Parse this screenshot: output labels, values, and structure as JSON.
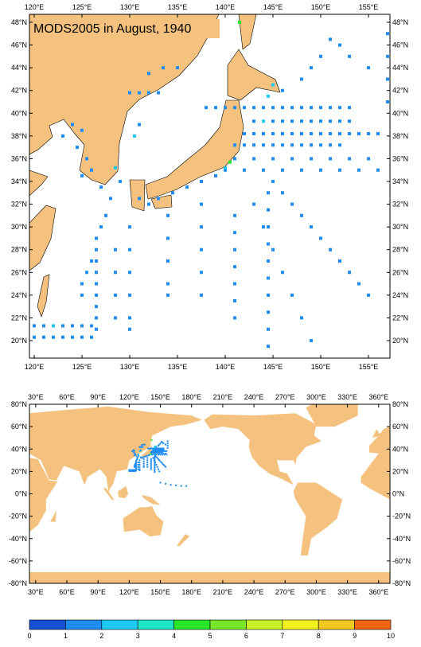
{
  "title": "MODS2005 in August, 1940",
  "maps": [
    {
      "lonlim": [
        119.5,
        157.25
      ],
      "latlim": [
        18.46,
        48.7
      ],
      "xticks": [
        {
          "value": 120,
          "label": "120°E"
        },
        {
          "value": 125,
          "label": "125°E"
        },
        {
          "value": 130,
          "label": "130°E"
        },
        {
          "value": 135,
          "label": "135°E"
        },
        {
          "value": 140,
          "label": "140°E"
        },
        {
          "value": 145,
          "label": "145°E"
        },
        {
          "value": 150,
          "label": "150°E"
        },
        {
          "value": 155,
          "label": "155°E"
        }
      ],
      "yticks": [
        {
          "value": 20,
          "label": "20°N"
        },
        {
          "value": 22,
          "label": "22°N"
        },
        {
          "value": 24,
          "label": "24°N"
        },
        {
          "value": 26,
          "label": "26°N"
        },
        {
          "value": 28,
          "label": "28°N"
        },
        {
          "value": 30,
          "label": "30°N"
        },
        {
          "value": 32,
          "label": "32°N"
        },
        {
          "value": 34,
          "label": "34°N"
        },
        {
          "value": 36,
          "label": "36°N"
        },
        {
          "value": 38,
          "label": "38°N"
        },
        {
          "value": 40,
          "label": "40°N"
        },
        {
          "value": 42,
          "label": "42°N"
        },
        {
          "value": 44,
          "label": "44°N"
        },
        {
          "value": 46,
          "label": "46°N"
        },
        {
          "value": 48,
          "label": "48°N"
        }
      ]
    },
    {
      "lonlim": [
        24,
        370.9
      ],
      "latlim": [
        -80,
        80
      ],
      "xticks": [
        {
          "value": 30,
          "label": "30°E"
        },
        {
          "value": 60,
          "label": "60°E"
        },
        {
          "value": 90,
          "label": "90°E"
        },
        {
          "value": 120,
          "label": "120°E"
        },
        {
          "value": 150,
          "label": "150°E"
        },
        {
          "value": 180,
          "label": "180°E"
        },
        {
          "value": 210,
          "label": "210°E"
        },
        {
          "value": 240,
          "label": "240°E"
        },
        {
          "value": 270,
          "label": "270°E"
        },
        {
          "value": 300,
          "label": "300°E"
        },
        {
          "value": 330,
          "label": "330°E"
        },
        {
          "value": 360,
          "label": "360°E"
        }
      ],
      "yticks": [
        {
          "value": -80,
          "label": "-80°N"
        },
        {
          "value": -60,
          "label": "-60°N"
        },
        {
          "value": -40,
          "label": "-40°N"
        },
        {
          "value": -20,
          "label": "-20°N"
        },
        {
          "value": 0,
          "label": "0°N"
        },
        {
          "value": 20,
          "label": "20°N"
        },
        {
          "value": 40,
          "label": "40°N"
        },
        {
          "value": 60,
          "label": "60°N"
        },
        {
          "value": 80,
          "label": "80°N"
        }
      ]
    }
  ],
  "colorbar": {
    "ticks": [
      0,
      1,
      2,
      3,
      4,
      5,
      6,
      7,
      8,
      9,
      10
    ],
    "colors": [
      "#1450d2",
      "#1e8cf0",
      "#1ec8f0",
      "#20e6c8",
      "#28e628",
      "#78e628",
      "#c8f028",
      "#f0f01e",
      "#f0c81e",
      "#f06414"
    ]
  },
  "observations": [
    [
      138,
      40.5,
      1.2
    ],
    [
      139,
      40.5,
      1.2
    ],
    [
      140,
      40.5,
      1.2
    ],
    [
      141,
      40.5,
      1.2
    ],
    [
      142,
      40.5,
      1.2
    ],
    [
      143,
      40.5,
      1.2
    ],
    [
      144,
      40.5,
      1.2
    ],
    [
      145,
      40.5,
      1.2
    ],
    [
      146,
      40.5,
      1.2
    ],
    [
      147,
      40.5,
      1.2
    ],
    [
      148,
      40.5,
      1.2
    ],
    [
      149,
      40.5,
      1.2
    ],
    [
      150,
      40.5,
      1.2
    ],
    [
      151,
      40.5,
      1.2
    ],
    [
      152,
      40.5,
      1.2
    ],
    [
      153,
      40.5,
      1.2
    ],
    [
      143,
      39.3,
      1.2
    ],
    [
      144,
      39.3,
      2.5
    ],
    [
      145,
      39.3,
      1.2
    ],
    [
      146,
      39.3,
      1.2
    ],
    [
      147,
      39.3,
      1.2
    ],
    [
      148,
      39.3,
      1.2
    ],
    [
      149,
      39.3,
      1.2
    ],
    [
      150,
      39.3,
      1.2
    ],
    [
      151,
      39.3,
      1.2
    ],
    [
      152,
      39.3,
      1.2
    ],
    [
      153,
      39.3,
      1.2
    ],
    [
      142,
      38.2,
      1.2
    ],
    [
      143,
      38.2,
      1.2
    ],
    [
      144,
      38.2,
      1.2
    ],
    [
      145,
      38.2,
      1.2
    ],
    [
      146,
      38.2,
      1.2
    ],
    [
      147,
      38.2,
      1.2
    ],
    [
      148,
      38.2,
      1.2
    ],
    [
      149,
      38.2,
      1.2
    ],
    [
      150,
      38.2,
      1.2
    ],
    [
      151,
      38.2,
      1.2
    ],
    [
      152,
      38.2,
      1.2
    ],
    [
      153,
      38.2,
      1.2
    ],
    [
      154,
      38.2,
      1.2
    ],
    [
      155,
      38.2,
      1.2
    ],
    [
      156,
      38.2,
      1.2
    ],
    [
      141,
      37.2,
      1.2
    ],
    [
      142,
      37.2,
      1.2
    ],
    [
      143,
      37.2,
      1.2
    ],
    [
      144,
      37.2,
      1.2
    ],
    [
      145,
      37.2,
      1.2
    ],
    [
      146,
      37.2,
      1.2
    ],
    [
      147,
      37.2,
      1.2
    ],
    [
      148,
      37.2,
      1.2
    ],
    [
      149,
      37.2,
      1.2
    ],
    [
      150,
      37.2,
      1.2
    ],
    [
      151,
      37.2,
      1.2
    ],
    [
      152,
      37.2,
      1.2
    ],
    [
      141,
      36,
      1.2
    ],
    [
      143,
      36,
      1.2
    ],
    [
      145,
      36,
      1.2
    ],
    [
      147,
      36,
      1.2
    ],
    [
      149,
      36,
      1.2
    ],
    [
      151,
      36,
      1.2
    ],
    [
      153,
      36,
      1.2
    ],
    [
      155,
      36,
      1.2
    ],
    [
      140,
      35,
      1.2
    ],
    [
      142,
      35,
      1.2
    ],
    [
      144,
      35,
      1.2
    ],
    [
      146,
      35,
      1.2
    ],
    [
      148,
      35,
      1.2
    ],
    [
      150,
      35,
      1.2
    ],
    [
      152,
      35,
      1.2
    ],
    [
      154,
      35,
      1.2
    ],
    [
      156,
      35,
      1.2
    ],
    [
      145,
      34,
      1.2
    ],
    [
      146,
      33,
      1.2
    ],
    [
      147,
      32,
      1.2
    ],
    [
      148,
      31,
      1.2
    ],
    [
      149,
      30,
      1.2
    ],
    [
      150,
      29,
      1.2
    ],
    [
      151,
      28,
      1.2
    ],
    [
      152,
      27,
      1.2
    ],
    [
      153,
      26,
      1.2
    ],
    [
      154,
      25,
      1.2
    ],
    [
      155,
      24,
      1.2
    ],
    [
      143,
      32,
      1.2
    ],
    [
      144,
      30,
      1.2
    ],
    [
      145,
      28,
      1.2
    ],
    [
      146,
      26,
      1.2
    ],
    [
      147,
      24,
      1.2
    ],
    [
      148,
      22,
      1.2
    ],
    [
      149,
      20,
      1.2
    ],
    [
      144.5,
      33,
      1.2
    ],
    [
      144.5,
      31.5,
      1.2
    ],
    [
      144.5,
      30,
      1.2
    ],
    [
      144.5,
      28.5,
      1.2
    ],
    [
      144.5,
      27,
      1.2
    ],
    [
      144.5,
      25.5,
      1.2
    ],
    [
      144.5,
      24,
      1.2
    ],
    [
      144.5,
      22.5,
      1.2
    ],
    [
      144.5,
      21,
      1.2
    ],
    [
      144.5,
      19.5,
      1.2
    ],
    [
      141,
      31,
      1.2
    ],
    [
      141,
      29.5,
      1.2
    ],
    [
      141,
      28,
      1.2
    ],
    [
      141,
      26.5,
      1.2
    ],
    [
      141,
      25,
      1.2
    ],
    [
      141,
      23.5,
      1.2
    ],
    [
      141,
      22,
      1.2
    ],
    [
      137.5,
      32,
      1.2
    ],
    [
      137.5,
      30,
      1.2
    ],
    [
      137.5,
      28,
      1.2
    ],
    [
      137.5,
      26,
      1.2
    ],
    [
      137.5,
      24,
      1.2
    ],
    [
      134,
      31,
      1.2
    ],
    [
      134,
      29,
      1.2
    ],
    [
      134,
      27,
      1.2
    ],
    [
      134,
      25,
      1.2
    ],
    [
      134,
      24,
      1.2
    ],
    [
      157,
      47,
      1.2
    ],
    [
      157,
      45,
      1.2
    ],
    [
      157,
      43,
      1.2
    ],
    [
      157,
      41,
      1.2
    ],
    [
      152,
      46,
      1.2
    ],
    [
      150,
      45,
      1.2
    ],
    [
      149,
      44,
      1.2
    ],
    [
      148,
      43,
      1.2
    ],
    [
      146,
      42,
      1.2
    ],
    [
      151,
      46.5,
      1.2
    ],
    [
      153,
      45,
      1.2
    ],
    [
      155,
      44,
      1.2
    ],
    [
      124,
      39,
      1.2
    ],
    [
      125,
      38.5,
      1.2
    ],
    [
      123,
      38,
      1.2
    ],
    [
      124.5,
      37,
      1.2
    ],
    [
      125.5,
      36,
      1.2
    ],
    [
      126,
      35,
      1.2
    ],
    [
      125,
      34.5,
      1.2
    ],
    [
      127,
      33.5,
      1.2
    ],
    [
      128.5,
      35.2,
      2.5
    ],
    [
      129,
      34,
      1.2
    ],
    [
      128,
      32.5,
      1.2
    ],
    [
      127.5,
      31,
      1.2
    ],
    [
      127,
      30,
      1.2
    ],
    [
      126.5,
      28,
      1.2
    ],
    [
      126,
      27,
      1.2
    ],
    [
      125.5,
      26,
      1.2
    ],
    [
      125,
      25,
      1.2
    ],
    [
      125,
      24,
      1.2
    ],
    [
      126.5,
      29,
      1.2
    ],
    [
      126.5,
      27,
      1.2
    ],
    [
      126.5,
      26,
      1.2
    ],
    [
      126.5,
      25,
      1.2
    ],
    [
      126.5,
      24,
      1.2
    ],
    [
      126.5,
      23,
      1.2
    ],
    [
      126.5,
      22,
      1.2
    ],
    [
      126.5,
      21,
      1.2
    ],
    [
      120,
      21.3,
      1.2
    ],
    [
      121,
      21.3,
      1.2
    ],
    [
      122,
      21.3,
      2.5
    ],
    [
      123,
      21.3,
      1.2
    ],
    [
      124,
      21.3,
      1.2
    ],
    [
      125,
      21.3,
      1.2
    ],
    [
      126,
      21.3,
      1.2
    ],
    [
      120,
      20.3,
      1.2
    ],
    [
      121,
      20.3,
      1.2
    ],
    [
      122,
      20.3,
      1.2
    ],
    [
      123,
      20.3,
      1.2
    ],
    [
      124,
      20.3,
      1.2
    ],
    [
      125,
      20.3,
      1.2
    ],
    [
      126,
      20.3,
      1.2
    ],
    [
      130,
      30,
      1.2
    ],
    [
      130,
      28,
      1.2
    ],
    [
      130,
      26,
      1.2
    ],
    [
      130,
      24,
      1.2
    ],
    [
      130,
      22,
      1.2
    ],
    [
      130,
      21,
      1.2
    ],
    [
      128.5,
      28,
      1.2
    ],
    [
      128.5,
      26,
      1.2
    ],
    [
      128.5,
      24,
      1.2
    ],
    [
      128.5,
      22,
      1.2
    ],
    [
      131,
      32.5,
      1.2
    ],
    [
      132,
      32,
      1.2
    ],
    [
      133,
      32.5,
      1.2
    ],
    [
      134.5,
      33,
      1.2
    ],
    [
      136,
      33.5,
      1.2
    ],
    [
      137.5,
      34,
      1.2
    ],
    [
      139,
      34.5,
      1.2
    ],
    [
      140,
      35.2,
      2.5
    ],
    [
      140.5,
      35.7,
      4.5
    ],
    [
      130.5,
      38,
      2.5
    ],
    [
      131,
      39,
      1.2
    ],
    [
      130,
      41.8,
      1.2
    ],
    [
      131,
      41.8,
      1.2
    ],
    [
      132,
      41.8,
      1.2
    ],
    [
      133,
      41.8,
      1.2
    ],
    [
      132,
      43.5,
      1.2
    ],
    [
      133.5,
      44,
      1.2
    ],
    [
      135,
      44,
      1.2
    ],
    [
      141.5,
      48,
      4.5
    ],
    [
      145,
      42.5,
      2.5
    ],
    [
      144.5,
      41.5,
      2.5
    ],
    [
      150,
      10,
      1.2
    ],
    [
      155,
      9,
      1.2
    ],
    [
      160,
      8,
      1.2
    ],
    [
      165,
      7.5,
      1.2
    ],
    [
      170,
      7,
      1.2
    ],
    [
      175,
      7,
      1.2
    ]
  ]
}
